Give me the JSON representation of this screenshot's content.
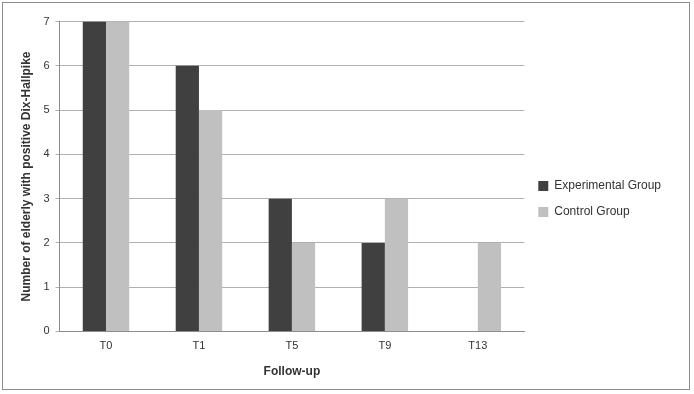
{
  "chart_data": {
    "type": "bar",
    "xlabel": "Follow-up",
    "ylabel": "Number of elderly with positive Dix-Hallpike",
    "categories": [
      "T0",
      "T1",
      "T5",
      "T9",
      "T13"
    ],
    "series": [
      {
        "name": "Experimental Group",
        "color": "#404040",
        "values": [
          7,
          6,
          3,
          2,
          0
        ]
      },
      {
        "name": "Control Group",
        "color": "#c0c0c0",
        "values": [
          7,
          5,
          2,
          3,
          2
        ]
      }
    ],
    "ylim": [
      0,
      7
    ],
    "yticks": [
      0,
      1,
      2,
      3,
      4,
      5,
      6,
      7
    ],
    "grid": true,
    "legend": "right"
  }
}
